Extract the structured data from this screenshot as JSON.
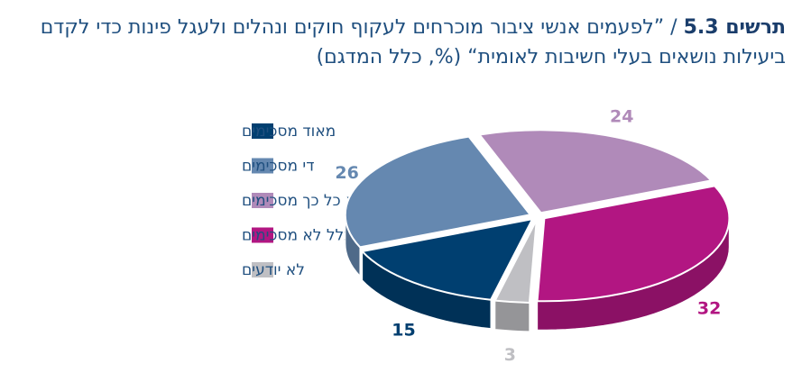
{
  "figure": {
    "label": "תרשים 5.3",
    "separator": " / ",
    "title": "”לפעמים אנשי ציבור מוכרחים לעקוף חוקים ונהלים ולעגל פינות כדי לקדם ביעילות נושאים בעלי חשיבות לאומית“ (%, כלל המדגם)"
  },
  "chart_data": {
    "type": "pie",
    "style": "3d-exploded",
    "legend_position": "left",
    "categories": [
      "מאוד מסכימים",
      "די מסכימים",
      "לא כל כך מסכימים",
      "בכלל לא מסכימים",
      "לא יודעים"
    ],
    "values": [
      15,
      26,
      24,
      32,
      3
    ],
    "colors": [
      "#003f70",
      "#6588b0",
      "#b08ab9",
      "#b21682",
      "#bfbfc3"
    ],
    "label_colors": [
      "#003f70",
      "#6588b0",
      "#b08ab9",
      "#b21682",
      "#bfbfc3"
    ],
    "value_labels": [
      "15",
      "26",
      "24",
      "32",
      "3"
    ]
  }
}
